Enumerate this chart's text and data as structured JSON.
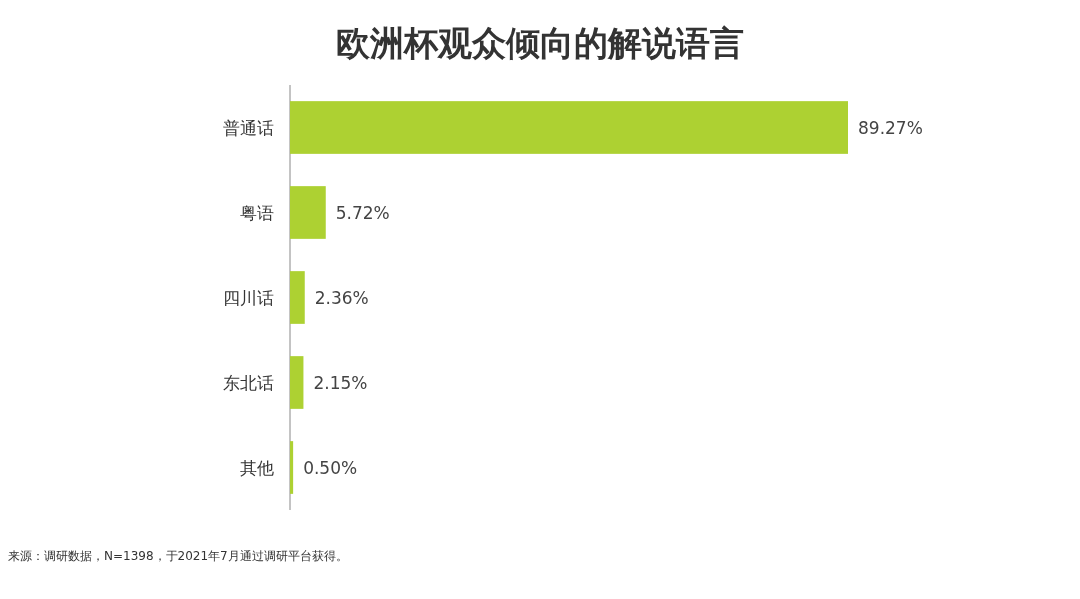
{
  "chart_data": {
    "type": "bar",
    "orientation": "horizontal",
    "title": "欧洲杯观众倾向的解说语言",
    "categories": [
      "普通话",
      "粤语",
      "四川话",
      "东北话",
      "其他"
    ],
    "values": [
      89.27,
      5.72,
      2.36,
      2.15,
      0.5
    ],
    "value_labels": [
      "89.27%",
      "5.72%",
      "2.36%",
      "2.15%",
      "0.50%"
    ],
    "color": "#add132",
    "annotations": [
      "来源：调研数据，N=1398，于2021年7月通过调研平台获得。"
    ]
  }
}
